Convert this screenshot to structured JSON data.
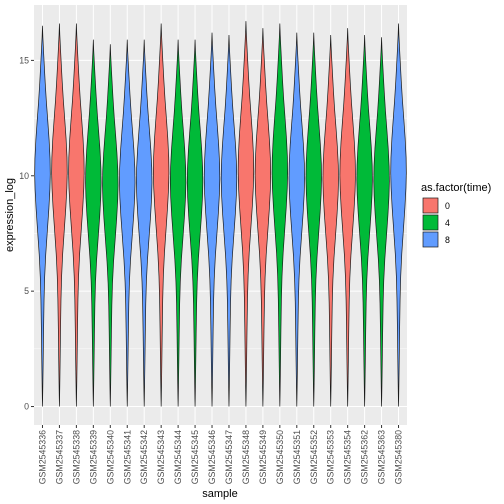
{
  "chart_data": {
    "type": "violin",
    "xlabel": "sample",
    "ylabel": "expression_log",
    "ylim": [
      -0.8,
      17.4
    ],
    "yticks": [
      0,
      5,
      10,
      15
    ],
    "grid": true,
    "legend": {
      "title": "as.factor(time)",
      "placement": "right",
      "entries": [
        {
          "label": "0",
          "color": "#F8766D"
        },
        {
          "label": "4",
          "color": "#00BA38"
        },
        {
          "label": "8",
          "color": "#619CFF"
        }
      ]
    },
    "categories": [
      "GSM2545336",
      "GSM2545337",
      "GSM2545338",
      "GSM2545339",
      "GSM2545340",
      "GSM2545341",
      "GSM2545342",
      "GSM2545343",
      "GSM2545344",
      "GSM2545345",
      "GSM2545346",
      "GSM2545347",
      "GSM2545348",
      "GSM2545349",
      "GSM2545350",
      "GSM2545351",
      "GSM2545352",
      "GSM2545353",
      "GSM2545354",
      "GSM2545362",
      "GSM2545363",
      "GSM2545380"
    ],
    "time": [
      "8",
      "0",
      "0",
      "4",
      "4",
      "8",
      "8",
      "0",
      "4",
      "4",
      "8",
      "8",
      "0",
      "0",
      "4",
      "8",
      "4",
      "0",
      "0",
      "4",
      "4",
      "8"
    ],
    "max": [
      16.5,
      16.6,
      16.6,
      15.9,
      15.7,
      15.9,
      15.9,
      16.6,
      15.9,
      15.9,
      16.2,
      16.1,
      16.7,
      16.4,
      16.6,
      16.2,
      16.2,
      16.1,
      16.4,
      16.1,
      16.0,
      16.6
    ],
    "min": [
      0,
      0,
      0,
      0,
      0,
      0,
      0,
      0,
      0,
      0,
      0,
      0,
      0,
      0,
      0,
      0,
      0,
      0,
      0,
      0,
      0,
      0
    ]
  }
}
